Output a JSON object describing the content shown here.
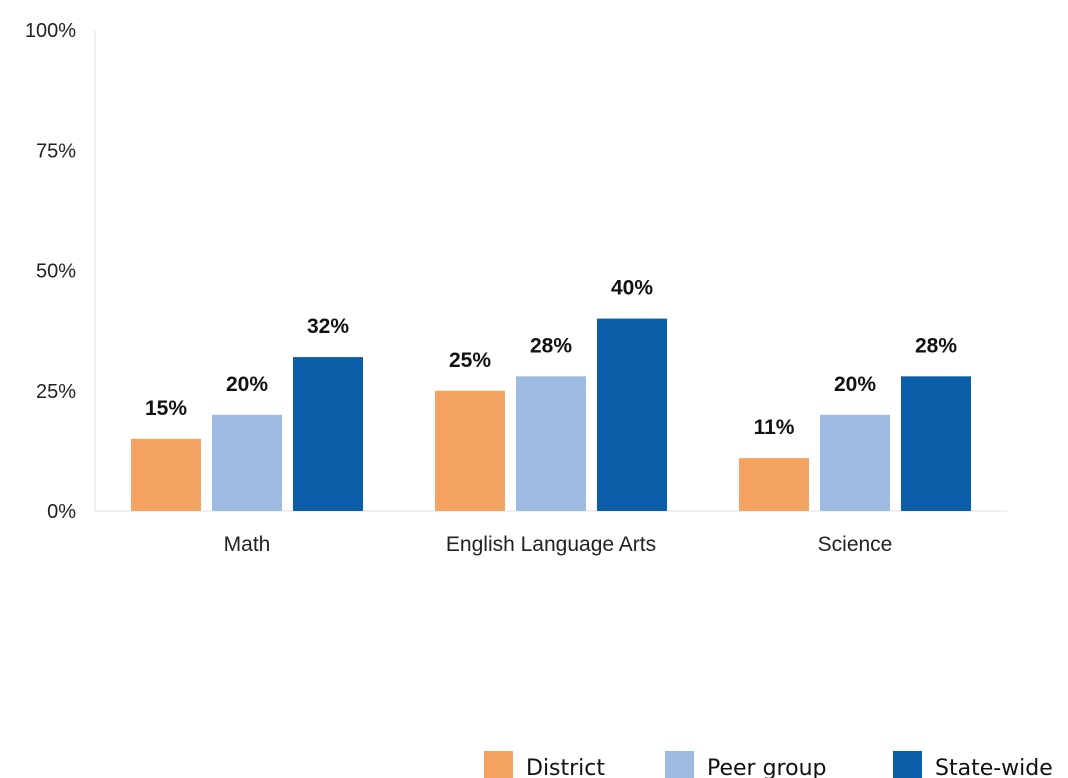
{
  "chart_data": {
    "type": "bar",
    "title": "",
    "xlabel": "",
    "ylabel": "",
    "categories": [
      "Math",
      "English Language Arts",
      "Science"
    ],
    "series": [
      {
        "name": "District",
        "values": [
          15,
          25,
          11
        ],
        "color": "#F4A460"
      },
      {
        "name": "Peer group",
        "values": [
          20,
          28,
          20
        ],
        "color": "#9DBBE1"
      },
      {
        "name": "State-wide",
        "values": [
          32,
          40,
          28
        ],
        "color": "#0B5EA8"
      }
    ],
    "value_suffix": "%",
    "ylim": [
      0,
      100
    ],
    "yticks": [
      "0%",
      "25%",
      "50%",
      "75%",
      "100%"
    ],
    "ytick_values": [
      0,
      25,
      50,
      75,
      100
    ],
    "grid": false,
    "legend_position": "bottom-right"
  }
}
